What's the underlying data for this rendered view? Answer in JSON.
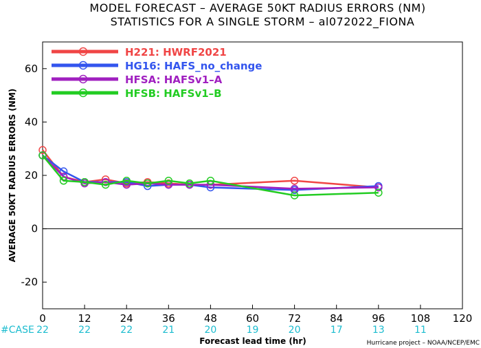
{
  "title_line1": "MODEL FORECAST – AVERAGE 50KT RADIUS ERRORS (NM)",
  "title_line2": "STATISTICS FOR A SINGLE STORM – al072022_FIONA",
  "case_label": "#CASE",
  "credit": "Hurricane project – NOAA/NCEP/EMC",
  "colors": {
    "case": "#1bbccf",
    "zero_line": "#000000"
  },
  "chart_data": {
    "type": "line",
    "title": "MODEL FORECAST – AVERAGE 50KT RADIUS ERRORS (NM)",
    "subtitle": "STATISTICS FOR A SINGLE STORM – al072022_FIONA",
    "xlabel": "Forecast lead time (hr)",
    "ylabel": "AVERAGE 50KT RADIUS ERRORS (NM)",
    "xlim": [
      0,
      120
    ],
    "ylim": [
      -30,
      70
    ],
    "xticks": [
      0,
      12,
      24,
      36,
      48,
      60,
      72,
      84,
      96,
      108,
      120
    ],
    "yticks": [
      -20,
      0,
      20,
      40,
      60
    ],
    "grid": false,
    "legend": "top-left",
    "cases": [
      {
        "x": 0,
        "n": "22"
      },
      {
        "x": 12,
        "n": "22"
      },
      {
        "x": 24,
        "n": "22"
      },
      {
        "x": 36,
        "n": "21"
      },
      {
        "x": 48,
        "n": "20"
      },
      {
        "x": 60,
        "n": "19"
      },
      {
        "x": 72,
        "n": "20"
      },
      {
        "x": 84,
        "n": "17"
      },
      {
        "x": 96,
        "n": "13"
      },
      {
        "x": 108,
        "n": "11"
      }
    ],
    "series": [
      {
        "code": "H221",
        "label": "HWRF2021",
        "color": "#f04545",
        "x": [
          0,
          6,
          12,
          18,
          24,
          30,
          36,
          42,
          48,
          72,
          96
        ],
        "y": [
          29.5,
          19.5,
          17.5,
          18.5,
          17.0,
          17.5,
          17.0,
          16.5,
          16.5,
          18.0,
          15.5
        ]
      },
      {
        "code": "HG16",
        "label": "HAFS_no_change",
        "color": "#3355ee",
        "x": [
          0,
          6,
          12,
          18,
          24,
          30,
          36,
          42,
          48,
          72,
          96
        ],
        "y": [
          27.5,
          21.5,
          17.5,
          17.5,
          17.5,
          16.0,
          16.5,
          16.5,
          15.5,
          14.5,
          16.0
        ]
      },
      {
        "code": "HFSA",
        "label": "HAFSv1–A",
        "color": "#a020c0",
        "x": [
          0,
          6,
          12,
          18,
          24,
          30,
          36,
          42,
          48,
          72,
          96
        ],
        "y": [
          27.5,
          19.5,
          17.0,
          17.5,
          16.5,
          17.0,
          16.5,
          16.5,
          16.5,
          15.0,
          15.5
        ]
      },
      {
        "code": "HFSB",
        "label": "HAFSv1–B",
        "color": "#22cc22",
        "x": [
          0,
          6,
          12,
          18,
          24,
          30,
          36,
          42,
          48,
          72,
          96
        ],
        "y": [
          27.5,
          18.0,
          17.5,
          16.5,
          18.0,
          17.0,
          18.0,
          17.0,
          18.0,
          12.5,
          13.5
        ]
      }
    ]
  }
}
